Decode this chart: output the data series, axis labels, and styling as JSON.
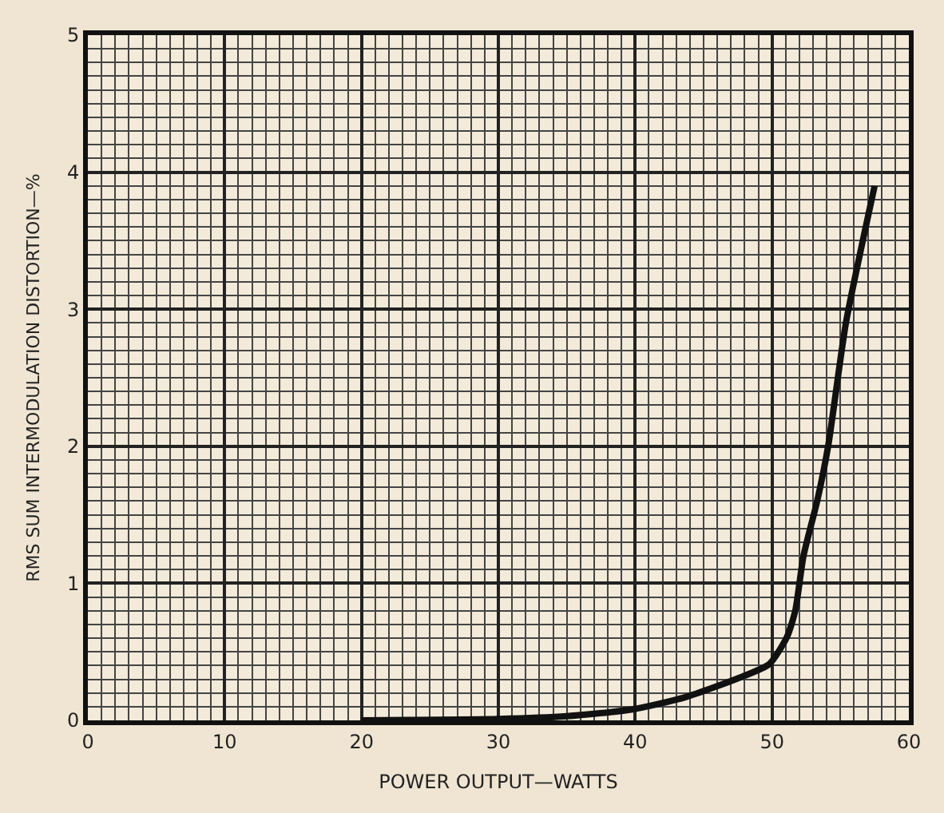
{
  "chart_data": {
    "type": "line",
    "xlabel": "POWER OUTPUT—WATTS",
    "ylabel": "RMS SUM INTERMODULATION DISTORTION—%",
    "xlim": [
      0,
      60
    ],
    "xticks": [
      0,
      10,
      20,
      30,
      40,
      50,
      60
    ],
    "ylim": [
      0,
      5
    ],
    "yticks": [
      0,
      1,
      2,
      3,
      4,
      5
    ],
    "grid": true,
    "marker": "none",
    "line_style": "solid",
    "x": [
      20,
      30,
      35,
      39.8,
      43.7,
      47.6,
      49.8,
      51.1,
      51.7,
      52.3,
      53.3,
      54.1,
      55.4,
      57.5
    ],
    "series": [
      {
        "color": "#111111",
        "values": [
          0,
          0.01,
          0.03,
          0.08,
          0.17,
          0.31,
          0.41,
          0.61,
          0.8,
          1.2,
          1.6,
          2.0,
          2.9,
          3.9
        ]
      }
    ]
  }
}
